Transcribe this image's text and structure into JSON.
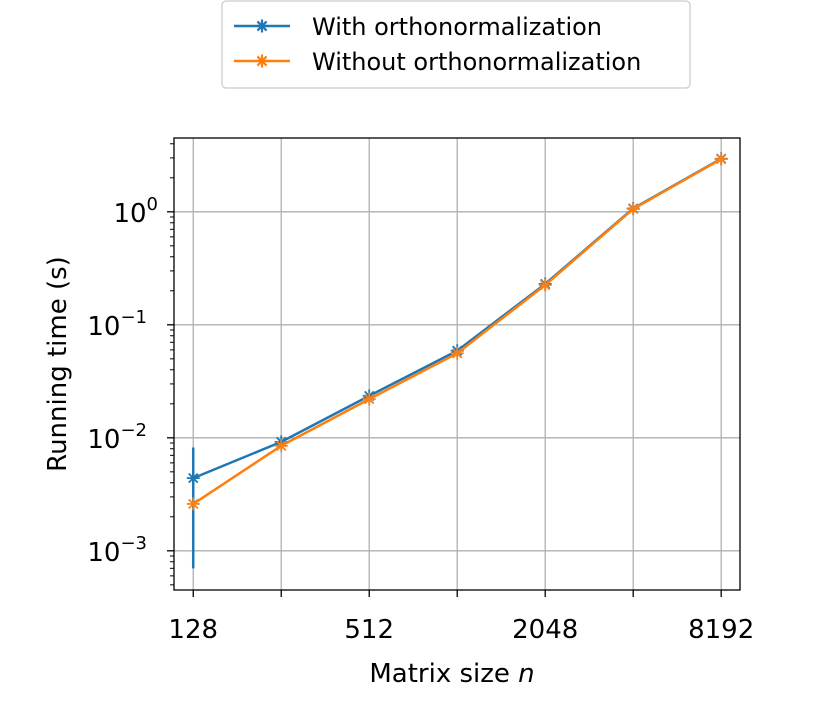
{
  "chart_data": {
    "type": "line",
    "xlabel": "Matrix size",
    "xlabel_var": "n",
    "ylabel": "Running time (s)",
    "x_scale": "log2",
    "y_scale": "log10",
    "x": [
      128,
      256,
      512,
      1024,
      2048,
      4096,
      8192
    ],
    "x_tick_labels": [
      "128",
      "512",
      "2048",
      "8192"
    ],
    "x_tick_label_values": [
      128,
      512,
      2048,
      8192
    ],
    "y_ticks": [
      {
        "value": 0.001,
        "base": "10",
        "exp": "−3"
      },
      {
        "value": 0.01,
        "base": "10",
        "exp": "−2"
      },
      {
        "value": 0.1,
        "base": "10",
        "exp": "−1"
      },
      {
        "value": 1,
        "base": "10",
        "exp": "0"
      }
    ],
    "xlim": [
      110,
      9500
    ],
    "ylim": [
      0.00045,
      4.5
    ],
    "grid": true,
    "legend_position": "top-center",
    "series": [
      {
        "name": "With orthonormalization",
        "color": "#1f77b4",
        "marker": "asterisk",
        "values": [
          0.0044,
          0.0092,
          0.0235,
          0.059,
          0.23,
          1.07,
          2.95
        ],
        "error_low": [
          0.0007,
          null,
          null,
          null,
          null,
          null,
          null
        ],
        "error_high": [
          0.0082,
          null,
          null,
          null,
          null,
          null,
          null
        ]
      },
      {
        "name": "Without orthonormalization",
        "color": "#ff7f0e",
        "marker": "asterisk",
        "values": [
          0.0026,
          0.0085,
          0.022,
          0.056,
          0.225,
          1.06,
          2.93
        ]
      }
    ]
  }
}
